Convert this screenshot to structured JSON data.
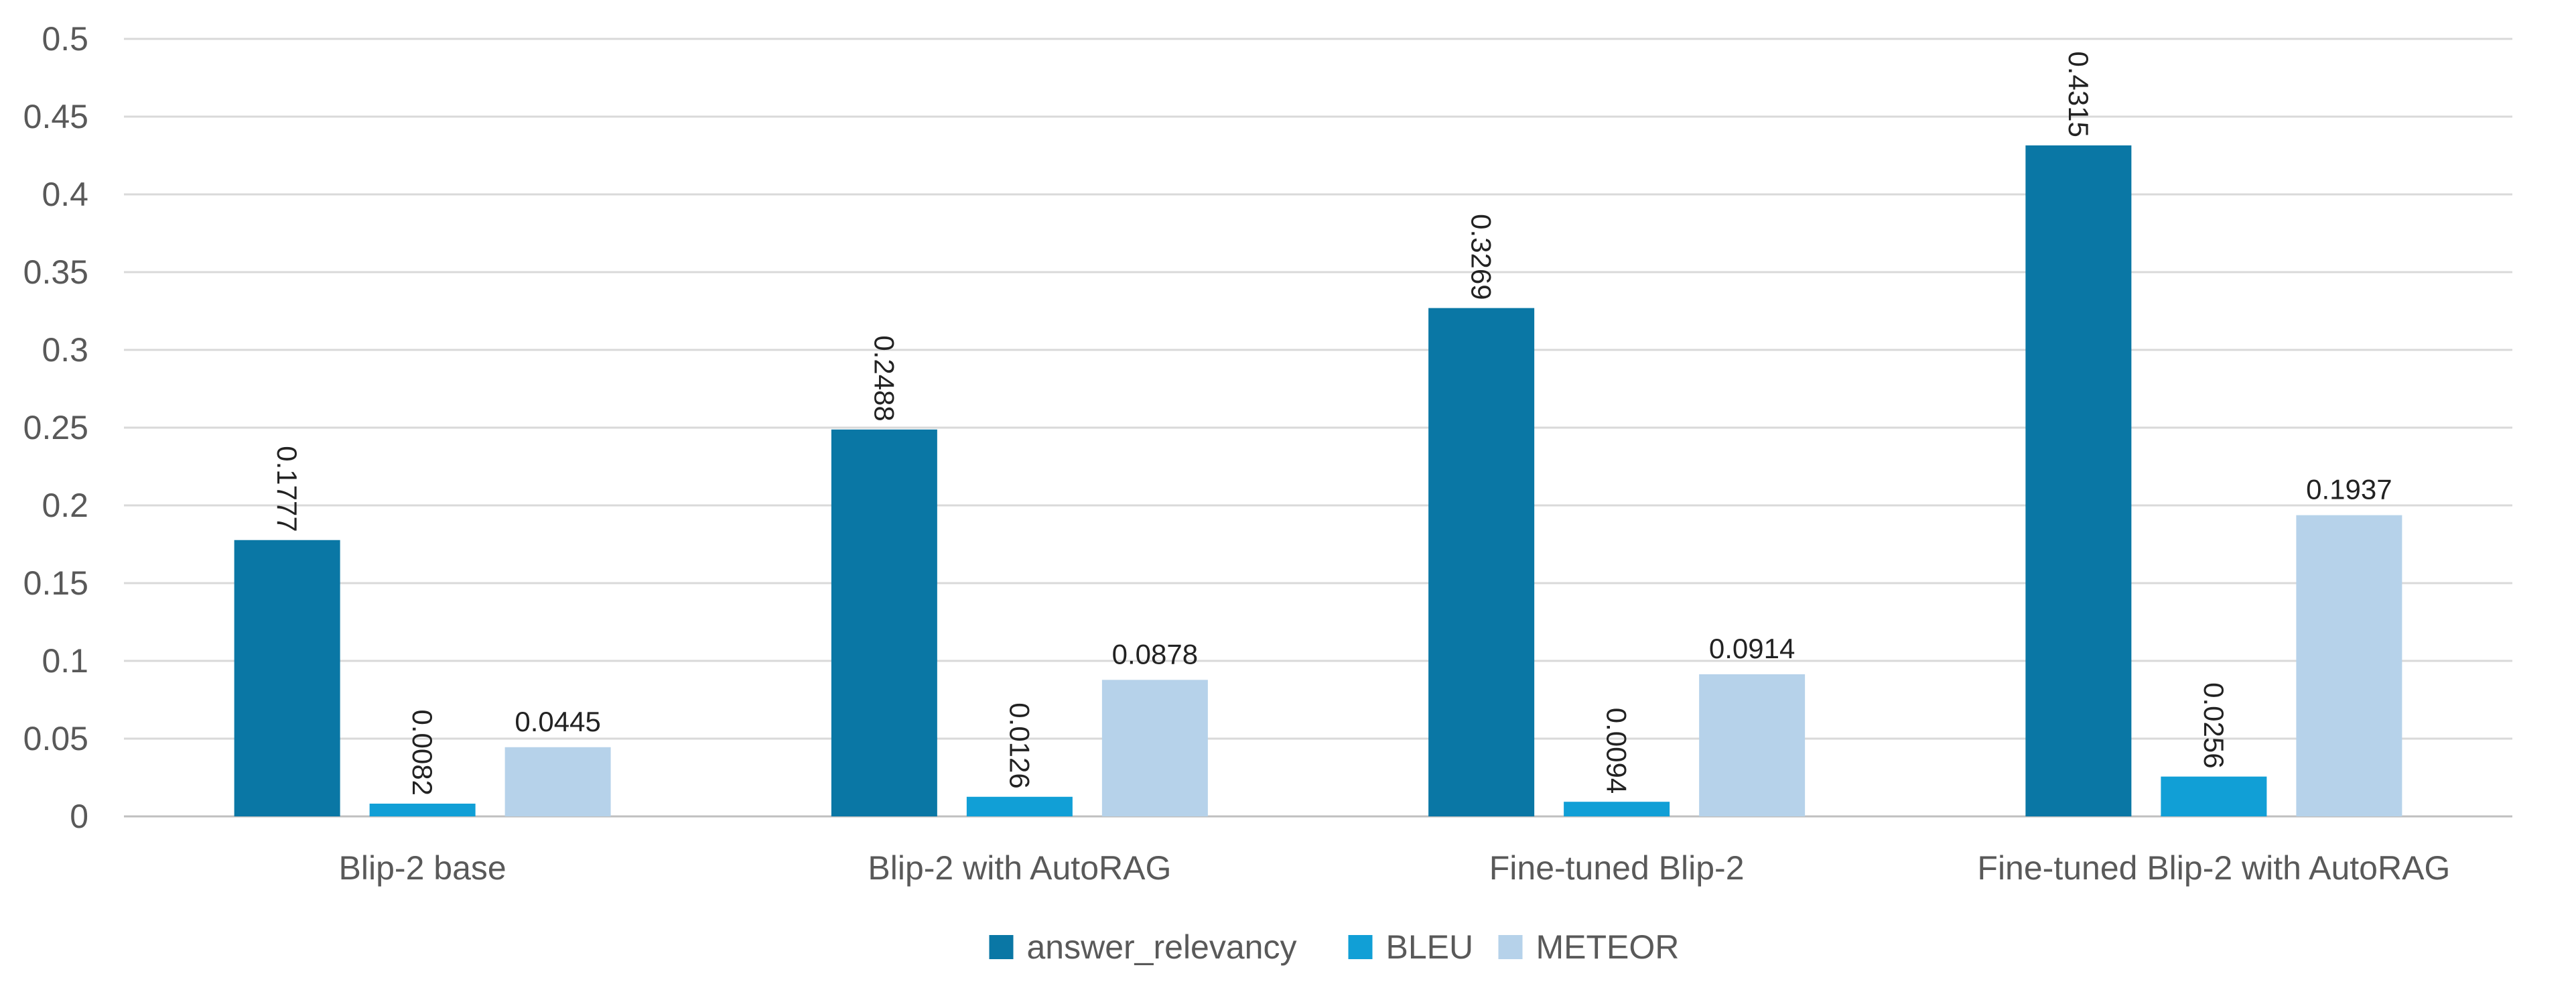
{
  "chart_data": {
    "type": "bar",
    "title": "",
    "xlabel": "",
    "ylabel": "",
    "ylim": [
      0,
      0.5
    ],
    "y_ticks": [
      "0",
      "0.05",
      "0.1",
      "0.15",
      "0.2",
      "0.25",
      "0.3",
      "0.35",
      "0.4",
      "0.45",
      "0.5"
    ],
    "grid": true,
    "legend_position": "bottom",
    "categories": [
      "Blip-2 base",
      "Blip-2 with AutoRAG",
      "Fine-tuned Blip-2",
      "Fine-tuned Blip-2 with AutoRAG"
    ],
    "series": [
      {
        "name": "answer_relevancy",
        "color": "#0a77a5",
        "label_style": "rotated",
        "values": [
          0.1777,
          0.2488,
          0.3269,
          0.4315
        ],
        "labels": [
          "0.1777",
          "0.2488",
          "0.3269",
          "0.4315"
        ]
      },
      {
        "name": "BLEU",
        "color": "#119fd6",
        "label_style": "rotated",
        "values": [
          0.0082,
          0.0126,
          0.0094,
          0.0256
        ],
        "labels": [
          "0.0082",
          "0.0126",
          "0.0094",
          "0.0256"
        ]
      },
      {
        "name": "METEOR",
        "color": "#b6d2ea",
        "label_style": "horizontal",
        "values": [
          0.0445,
          0.0878,
          0.0914,
          0.1937
        ],
        "labels": [
          "0.0445",
          "0.0878",
          "0.0914",
          "0.1937"
        ]
      }
    ]
  }
}
